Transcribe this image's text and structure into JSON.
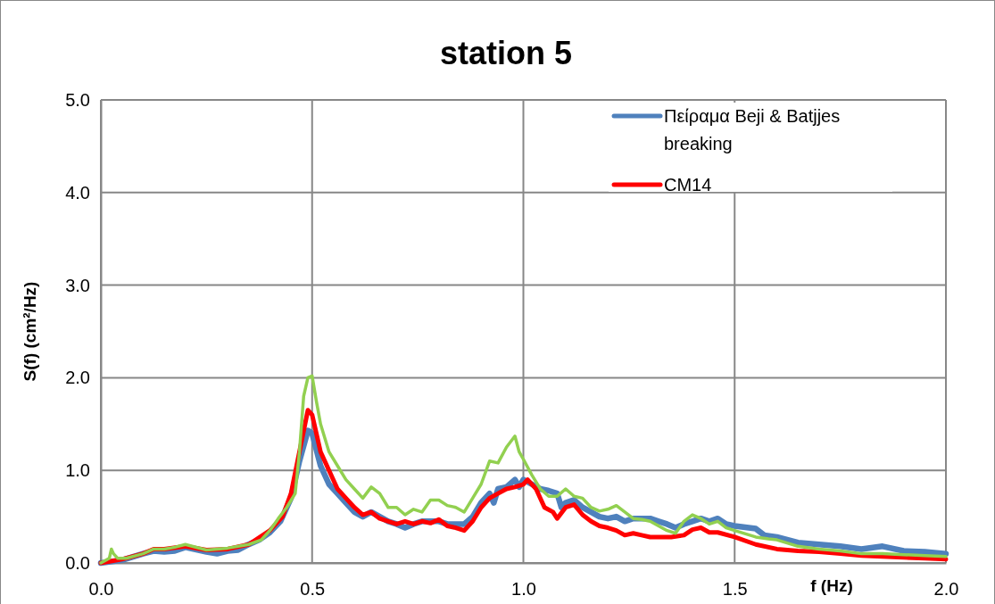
{
  "chart_data": {
    "type": "line",
    "title": "station 5",
    "xlabel": "f (Hz)",
    "ylabel": "S(f) (cm²/Hz)",
    "xlim": [
      0,
      2
    ],
    "ylim": [
      0,
      5
    ],
    "xticks": [
      {
        "value": 0,
        "label": "0.0"
      },
      {
        "value": 0.5,
        "label": "0.5"
      },
      {
        "value": 1,
        "label": "1.0"
      },
      {
        "value": 1.5,
        "label": "1.5"
      },
      {
        "value": 2,
        "label": "2.0"
      }
    ],
    "yticks": [
      {
        "value": 0,
        "label": "0.0"
      },
      {
        "value": 1,
        "label": "1.0"
      },
      {
        "value": 2,
        "label": "2.0"
      },
      {
        "value": 3,
        "label": "3.0"
      },
      {
        "value": 4,
        "label": "4.0"
      },
      {
        "value": 5,
        "label": "5.0"
      }
    ],
    "grid": true,
    "legend": "top right",
    "marker": "none",
    "line_style": "solid",
    "series": [
      {
        "name": "Πείραμα Beji & Batjjes breaking",
        "color": "#4f81bd",
        "x": [
          0,
          0.05,
          0.1,
          0.125,
          0.15,
          0.175,
          0.2,
          0.25,
          0.275,
          0.3,
          0.325,
          0.35,
          0.375,
          0.4,
          0.425,
          0.45,
          0.47,
          0.49,
          0.5,
          0.52,
          0.54,
          0.56,
          0.58,
          0.6,
          0.62,
          0.64,
          0.66,
          0.68,
          0.7,
          0.72,
          0.74,
          0.76,
          0.78,
          0.8,
          0.82,
          0.84,
          0.86,
          0.88,
          0.9,
          0.92,
          0.93,
          0.94,
          0.96,
          0.98,
          0.99,
          1,
          1.02,
          1.04,
          1.06,
          1.08,
          1.09,
          1.1,
          1.12,
          1.14,
          1.16,
          1.18,
          1.2,
          1.22,
          1.24,
          1.26,
          1.28,
          1.3,
          1.32,
          1.34,
          1.36,
          1.38,
          1.4,
          1.42,
          1.44,
          1.46,
          1.48,
          1.5,
          1.55,
          1.57,
          1.6,
          1.65,
          1.7,
          1.75,
          1.8,
          1.85,
          1.9,
          1.95,
          2
        ],
        "values": [
          0,
          0.03,
          0.1,
          0.13,
          0.12,
          0.13,
          0.17,
          0.12,
          0.1,
          0.13,
          0.14,
          0.2,
          0.25,
          0.33,
          0.45,
          0.7,
          1.1,
          1.43,
          1.4,
          1.05,
          0.85,
          0.75,
          0.65,
          0.55,
          0.5,
          0.55,
          0.5,
          0.45,
          0.42,
          0.38,
          0.42,
          0.45,
          0.45,
          0.45,
          0.42,
          0.42,
          0.42,
          0.5,
          0.65,
          0.75,
          0.65,
          0.8,
          0.82,
          0.9,
          0.82,
          0.9,
          0.85,
          0.8,
          0.78,
          0.75,
          0.6,
          0.65,
          0.68,
          0.6,
          0.55,
          0.5,
          0.48,
          0.5,
          0.45,
          0.48,
          0.48,
          0.48,
          0.45,
          0.42,
          0.38,
          0.42,
          0.45,
          0.48,
          0.45,
          0.48,
          0.42,
          0.4,
          0.37,
          0.3,
          0.28,
          0.22,
          0.2,
          0.18,
          0.15,
          0.18,
          0.13,
          0.12,
          0.1
        ]
      },
      {
        "name": "CM14",
        "color": "#ff0000",
        "x": [
          0,
          0.05,
          0.1,
          0.125,
          0.15,
          0.2,
          0.25,
          0.3,
          0.35,
          0.4,
          0.43,
          0.45,
          0.47,
          0.49,
          0.5,
          0.52,
          0.54,
          0.56,
          0.58,
          0.6,
          0.62,
          0.64,
          0.66,
          0.68,
          0.7,
          0.72,
          0.74,
          0.76,
          0.78,
          0.8,
          0.82,
          0.84,
          0.86,
          0.88,
          0.9,
          0.92,
          0.94,
          0.96,
          0.98,
          1,
          1.01,
          1.03,
          1.05,
          1.07,
          1.08,
          1.1,
          1.12,
          1.14,
          1.16,
          1.18,
          1.2,
          1.22,
          1.24,
          1.26,
          1.28,
          1.3,
          1.35,
          1.38,
          1.4,
          1.42,
          1.44,
          1.46,
          1.5,
          1.55,
          1.6,
          1.65,
          1.7,
          1.75,
          1.8,
          1.85,
          1.9,
          1.95,
          2
        ],
        "values": [
          0,
          0.04,
          0.1,
          0.15,
          0.15,
          0.18,
          0.14,
          0.15,
          0.2,
          0.35,
          0.5,
          0.75,
          1.2,
          1.65,
          1.6,
          1.2,
          1,
          0.8,
          0.7,
          0.6,
          0.52,
          0.55,
          0.48,
          0.45,
          0.42,
          0.45,
          0.42,
          0.45,
          0.43,
          0.47,
          0.4,
          0.38,
          0.35,
          0.45,
          0.6,
          0.7,
          0.75,
          0.8,
          0.82,
          0.85,
          0.9,
          0.8,
          0.6,
          0.55,
          0.48,
          0.6,
          0.63,
          0.52,
          0.45,
          0.4,
          0.38,
          0.35,
          0.3,
          0.32,
          0.3,
          0.28,
          0.28,
          0.3,
          0.36,
          0.38,
          0.33,
          0.33,
          0.28,
          0.2,
          0.15,
          0.13,
          0.12,
          0.1,
          0.08,
          0.07,
          0.06,
          0.05,
          0.04
        ]
      },
      {
        "color": "#92d050",
        "x": [
          0,
          0.02,
          0.025,
          0.03,
          0.04,
          0.06,
          0.1,
          0.125,
          0.15,
          0.175,
          0.2,
          0.25,
          0.3,
          0.35,
          0.38,
          0.4,
          0.42,
          0.44,
          0.46,
          0.47,
          0.48,
          0.49,
          0.5,
          0.51,
          0.52,
          0.54,
          0.56,
          0.58,
          0.6,
          0.62,
          0.64,
          0.66,
          0.68,
          0.7,
          0.72,
          0.74,
          0.76,
          0.78,
          0.8,
          0.82,
          0.84,
          0.86,
          0.88,
          0.9,
          0.92,
          0.94,
          0.96,
          0.98,
          0.99,
          1,
          1.02,
          1.04,
          1.06,
          1.08,
          1.1,
          1.12,
          1.14,
          1.16,
          1.18,
          1.2,
          1.22,
          1.24,
          1.26,
          1.28,
          1.3,
          1.32,
          1.34,
          1.36,
          1.38,
          1.4,
          1.42,
          1.44,
          1.46,
          1.48,
          1.5,
          1.55,
          1.58,
          1.6,
          1.65,
          1.7,
          1.75,
          1.8,
          1.85,
          1.9,
          1.95,
          2
        ],
        "values": [
          0,
          0.05,
          0.15,
          0.1,
          0.05,
          0.05,
          0.1,
          0.15,
          0.15,
          0.17,
          0.2,
          0.14,
          0.16,
          0.2,
          0.25,
          0.35,
          0.48,
          0.6,
          0.75,
          1.2,
          1.8,
          2,
          2.02,
          1.75,
          1.5,
          1.2,
          1.05,
          0.9,
          0.8,
          0.7,
          0.82,
          0.75,
          0.6,
          0.6,
          0.52,
          0.58,
          0.55,
          0.68,
          0.68,
          0.62,
          0.6,
          0.55,
          0.7,
          0.85,
          1.1,
          1.08,
          1.25,
          1.37,
          1.2,
          1.12,
          0.95,
          0.8,
          0.72,
          0.72,
          0.8,
          0.72,
          0.7,
          0.6,
          0.56,
          0.58,
          0.62,
          0.55,
          0.48,
          0.47,
          0.45,
          0.4,
          0.35,
          0.32,
          0.45,
          0.52,
          0.48,
          0.42,
          0.45,
          0.38,
          0.35,
          0.28,
          0.26,
          0.25,
          0.18,
          0.15,
          0.13,
          0.1,
          0.1,
          0.09,
          0.08,
          0.07
        ]
      }
    ]
  }
}
